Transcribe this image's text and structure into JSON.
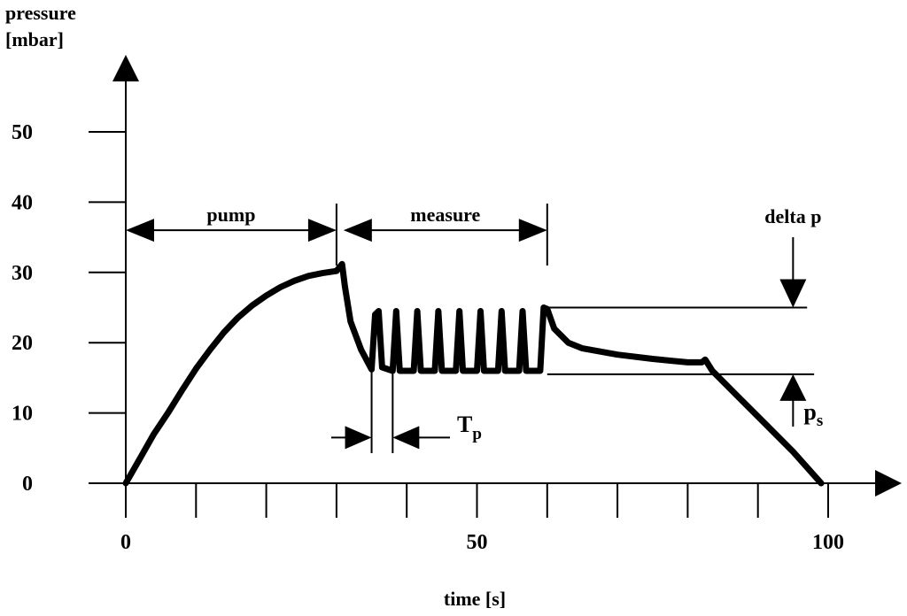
{
  "chart_data": {
    "type": "line",
    "ylabel_line1": "pressure",
    "ylabel_line2": "[mbar]",
    "xlabel": "time [s]",
    "xlim": [
      0,
      100
    ],
    "ylim": [
      0,
      50
    ],
    "x_ticks": [
      0,
      10,
      20,
      30,
      40,
      50,
      60,
      70,
      80,
      90,
      100
    ],
    "x_tick_labels": [
      {
        "x": 0,
        "label": "0"
      },
      {
        "x": 50,
        "label": "50"
      },
      {
        "x": 100,
        "label": "100"
      }
    ],
    "y_ticks": [
      0,
      10,
      20,
      30,
      40,
      50
    ],
    "y_tick_labels": [
      "0",
      "10",
      "20",
      "30",
      "40",
      "50"
    ],
    "annotations": {
      "pump": {
        "label": "pump",
        "from": 0,
        "to": 30,
        "y": 36
      },
      "measure": {
        "label": "measure",
        "from": 31,
        "to": 60,
        "y": 36
      },
      "delta_p": {
        "label": "delta p",
        "x": 95,
        "level": 25
      },
      "p_s": {
        "label": "p",
        "subscript": "s",
        "x": 95,
        "level": 15.5
      },
      "T_p": {
        "label": "T",
        "subscript": "p",
        "from": 35,
        "to": 38,
        "y": 6.5
      },
      "phase_markers": [
        30,
        60
      ]
    },
    "reference_lines": [
      {
        "y": 25,
        "x_from": 60,
        "x_to": 97
      },
      {
        "y": 15.5,
        "x_from": 60,
        "x_to": 98
      }
    ],
    "pulse_count": 9,
    "series": [
      {
        "points": [
          [
            0,
            0
          ],
          [
            2,
            3.5
          ],
          [
            4,
            7
          ],
          [
            6,
            10
          ],
          [
            8,
            13.2
          ],
          [
            10,
            16.3
          ],
          [
            12,
            19
          ],
          [
            14,
            21.5
          ],
          [
            16,
            23.6
          ],
          [
            18,
            25.3
          ],
          [
            20,
            26.7
          ],
          [
            22,
            27.9
          ],
          [
            24,
            28.8
          ],
          [
            26,
            29.5
          ],
          [
            28,
            29.9
          ],
          [
            30,
            30.2
          ],
          [
            30.8,
            31.2
          ],
          [
            31.2,
            28
          ],
          [
            32,
            23
          ],
          [
            33.5,
            19
          ],
          [
            35,
            16.2
          ],
          [
            35.5,
            24
          ],
          [
            36,
            24.5
          ],
          [
            36.5,
            16.5
          ],
          [
            38,
            16
          ],
          [
            38.5,
            24.5
          ],
          [
            39,
            16
          ],
          [
            41,
            16
          ],
          [
            41.5,
            24.5
          ],
          [
            42,
            16
          ],
          [
            44,
            16
          ],
          [
            44.5,
            24.5
          ],
          [
            45,
            16
          ],
          [
            47,
            16
          ],
          [
            47.5,
            24.5
          ],
          [
            48,
            16
          ],
          [
            50,
            16
          ],
          [
            50.5,
            24.5
          ],
          [
            51,
            16
          ],
          [
            53,
            16
          ],
          [
            53.5,
            24.5
          ],
          [
            54,
            16
          ],
          [
            56,
            16
          ],
          [
            56.5,
            24.5
          ],
          [
            57,
            16
          ],
          [
            59,
            16
          ],
          [
            59.5,
            25
          ],
          [
            60,
            24.8
          ],
          [
            61,
            22
          ],
          [
            63,
            20
          ],
          [
            65,
            19.2
          ],
          [
            70,
            18.3
          ],
          [
            75,
            17.7
          ],
          [
            80,
            17.2
          ],
          [
            82,
            17.2
          ],
          [
            82.5,
            17.6
          ],
          [
            83.5,
            16
          ],
          [
            87,
            12.5
          ],
          [
            91,
            8.5
          ],
          [
            95,
            4.5
          ],
          [
            99,
            0
          ]
        ]
      }
    ]
  }
}
